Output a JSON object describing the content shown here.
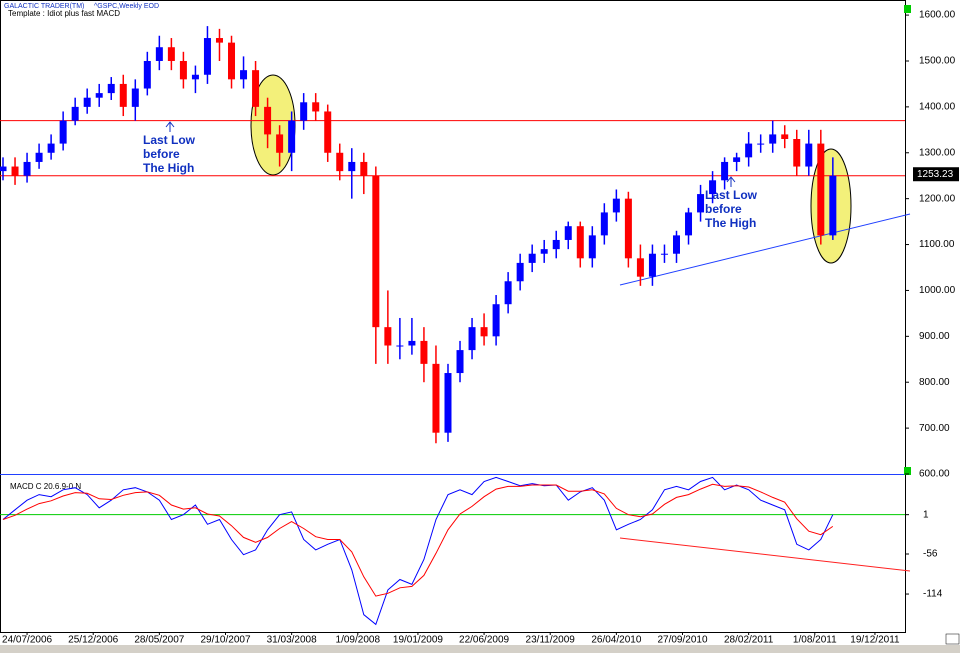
{
  "chart_data": {
    "type": "candlestick",
    "brand": "GALACTIC TRADER(TM)",
    "symbol": "^GSPC,Weekly EOD",
    "template": "Template : Idiot plus fast MACD",
    "last_price": {
      "value": 1253.23,
      "label": "1253.23"
    },
    "up_color": "#0000ff",
    "down_color": "#ff0000",
    "hlines": [
      1370,
      1250
    ],
    "hline_color": "#ff0000",
    "annotations": [
      {
        "lines": [
          "Last Low",
          "before",
          "The High"
        ]
      },
      {
        "lines": [
          "Last Low",
          "before",
          "The High"
        ]
      }
    ],
    "xlim": [
      "22/05/2006",
      "27/02/2012"
    ],
    "xticks": [
      "24/07/2006",
      "25/12/2006",
      "28/05/2007",
      "29/10/2007",
      "31/03/2008",
      "1/09/2008",
      "19/01/2009",
      "22/06/2009",
      "23/11/2009",
      "26/04/2010",
      "27/09/2010",
      "28/02/2011",
      "1/08/2011",
      "19/12/2011"
    ],
    "ylim": [
      600,
      1622
    ],
    "yticks": [
      {
        "value": 600,
        "label": "600.00"
      },
      {
        "value": 700,
        "label": "700.00"
      },
      {
        "value": 800,
        "label": "800.00"
      },
      {
        "value": 900,
        "label": "900.00"
      },
      {
        "value": 1000,
        "label": "1000.00"
      },
      {
        "value": 1100,
        "label": "1100.00"
      },
      {
        "value": 1200,
        "label": "1200.00"
      },
      {
        "value": 1300,
        "label": "1300.00"
      },
      {
        "value": 1400,
        "label": "1400.00"
      },
      {
        "value": 1500,
        "label": "1500.00"
      },
      {
        "value": 1600,
        "label": "1600.00"
      }
    ],
    "x": [
      "29/05/2006",
      "26/06/2006",
      "24/07/2006",
      "21/08/2006",
      "18/09/2006",
      "16/10/2006",
      "13/11/2006",
      "11/12/2006",
      "08/01/2007",
      "05/02/2007",
      "05/03/2007",
      "02/04/2007",
      "30/04/2007",
      "28/05/2007",
      "25/06/2007",
      "23/07/2007",
      "20/08/2007",
      "17/09/2007",
      "15/10/2007",
      "12/11/2007",
      "10/12/2007",
      "07/01/2008",
      "04/02/2008",
      "03/03/2008",
      "31/03/2008",
      "28/04/2008",
      "26/05/2008",
      "23/06/2008",
      "21/07/2008",
      "18/08/2008",
      "15/09/2008",
      "13/10/2008",
      "10/11/2008",
      "08/12/2008",
      "05/01/2009",
      "02/02/2009",
      "02/03/2009",
      "30/03/2009",
      "27/04/2009",
      "25/05/2009",
      "22/06/2009",
      "20/07/2009",
      "17/08/2009",
      "14/09/2009",
      "12/10/2009",
      "09/11/2009",
      "07/12/2009",
      "04/01/2010",
      "01/02/2010",
      "01/03/2010",
      "29/03/2010",
      "26/04/2010",
      "24/05/2010",
      "21/06/2010",
      "19/07/2010",
      "16/08/2010",
      "13/09/2010",
      "11/10/2010",
      "08/11/2010",
      "06/12/2010",
      "03/01/2011",
      "31/01/2011",
      "28/02/2011",
      "28/03/2011",
      "25/04/2011",
      "23/05/2011",
      "20/06/2011",
      "18/07/2011",
      "15/08/2011",
      "12/09/2011"
    ],
    "open": [
      1260,
      1270,
      1250,
      1280,
      1300,
      1320,
      1370,
      1400,
      1420,
      1430,
      1450,
      1400,
      1440,
      1500,
      1530,
      1500,
      1460,
      1470,
      1550,
      1540,
      1460,
      1480,
      1400,
      1340,
      1300,
      1370,
      1410,
      1390,
      1300,
      1260,
      1280,
      1250,
      920,
      880,
      880,
      890,
      840,
      690,
      820,
      870,
      920,
      900,
      970,
      1020,
      1060,
      1080,
      1090,
      1110,
      1140,
      1070,
      1120,
      1170,
      1200,
      1070,
      1030,
      1080,
      1080,
      1120,
      1170,
      1210,
      1240,
      1280,
      1290,
      1320,
      1320,
      1340,
      1330,
      1270,
      1320,
      1120
    ],
    "high": [
      1290,
      1290,
      1300,
      1320,
      1340,
      1390,
      1420,
      1440,
      1450,
      1465,
      1470,
      1460,
      1520,
      1555,
      1550,
      1520,
      1490,
      1576,
      1570,
      1555,
      1510,
      1500,
      1420,
      1360,
      1390,
      1430,
      1430,
      1405,
      1320,
      1310,
      1300,
      1270,
      1000,
      940,
      940,
      920,
      880,
      840,
      890,
      940,
      950,
      990,
      1040,
      1080,
      1100,
      1110,
      1130,
      1150,
      1150,
      1140,
      1190,
      1220,
      1215,
      1100,
      1100,
      1100,
      1130,
      1180,
      1230,
      1260,
      1290,
      1300,
      1345,
      1340,
      1370,
      1360,
      1350,
      1350,
      1350,
      1290
    ],
    "low": [
      1240,
      1230,
      1235,
      1265,
      1285,
      1305,
      1360,
      1385,
      1400,
      1415,
      1380,
      1370,
      1425,
      1480,
      1480,
      1440,
      1430,
      1450,
      1500,
      1440,
      1440,
      1380,
      1310,
      1270,
      1260,
      1350,
      1370,
      1280,
      1240,
      1200,
      1210,
      840,
      840,
      850,
      860,
      800,
      667,
      670,
      800,
      850,
      880,
      880,
      950,
      1000,
      1040,
      1060,
      1070,
      1090,
      1050,
      1050,
      1100,
      1150,
      1050,
      1010,
      1010,
      1060,
      1060,
      1100,
      1150,
      1190,
      1220,
      1260,
      1270,
      1300,
      1300,
      1310,
      1250,
      1250,
      1100,
      1110
    ],
    "close": [
      1270,
      1250,
      1280,
      1300,
      1320,
      1370,
      1400,
      1420,
      1430,
      1450,
      1400,
      1440,
      1500,
      1530,
      1500,
      1460,
      1470,
      1550,
      1540,
      1460,
      1480,
      1400,
      1340,
      1300,
      1370,
      1410,
      1390,
      1300,
      1260,
      1280,
      1250,
      920,
      880,
      880,
      890,
      840,
      690,
      820,
      870,
      920,
      900,
      970,
      1020,
      1060,
      1080,
      1090,
      1110,
      1140,
      1070,
      1120,
      1170,
      1200,
      1070,
      1030,
      1080,
      1080,
      1120,
      1170,
      1210,
      1240,
      1280,
      1290,
      1320,
      1320,
      1340,
      1330,
      1270,
      1320,
      1120,
      1250
    ],
    "macd": {
      "label": "MACD C 20.6.9-0 N",
      "ylim": [
        -169,
        57
      ],
      "yticks": [
        1,
        -56,
        -114
      ],
      "zero_color": "#00cc00",
      "series": [
        {
          "name": "MACD",
          "color": "#0000ff",
          "values": [
            -6,
            8,
            22,
            30,
            27,
            37,
            40,
            30,
            11,
            22,
            37,
            40,
            34,
            22,
            -6,
            1,
            15,
            -13,
            -6,
            -35,
            -57,
            -50,
            -21,
            1,
            5,
            -35,
            -50,
            -42,
            -35,
            -79,
            -144,
            -158,
            -108,
            -93,
            -100,
            -64,
            -6,
            30,
            37,
            30,
            49,
            55,
            49,
            43,
            46,
            43,
            44,
            22,
            34,
            40,
            22,
            -21,
            -13,
            -6,
            8,
            37,
            42,
            37,
            49,
            55,
            37,
            44,
            37,
            22,
            15,
            8,
            -42,
            -50,
            -35,
            1
          ]
        },
        {
          "name": "Signal",
          "color": "#ff0000",
          "values": [
            -6,
            0,
            9,
            17,
            21,
            28,
            33,
            32,
            24,
            23,
            29,
            33,
            34,
            29,
            15,
            9,
            11,
            2,
            -1,
            -15,
            -32,
            -39,
            -32,
            -19,
            -9,
            -19,
            -31,
            -35,
            -35,
            -53,
            -89,
            -117,
            -113,
            -105,
            -103,
            -87,
            -55,
            -21,
            2,
            13,
            27,
            38,
            42,
            42,
            44,
            44,
            44,
            35,
            35,
            37,
            31,
            10,
            1,
            -2,
            2,
            16,
            26,
            30,
            38,
            45,
            42,
            43,
            41,
            34,
            26,
            19,
            -5,
            -23,
            -28,
            -16
          ]
        }
      ]
    }
  }
}
